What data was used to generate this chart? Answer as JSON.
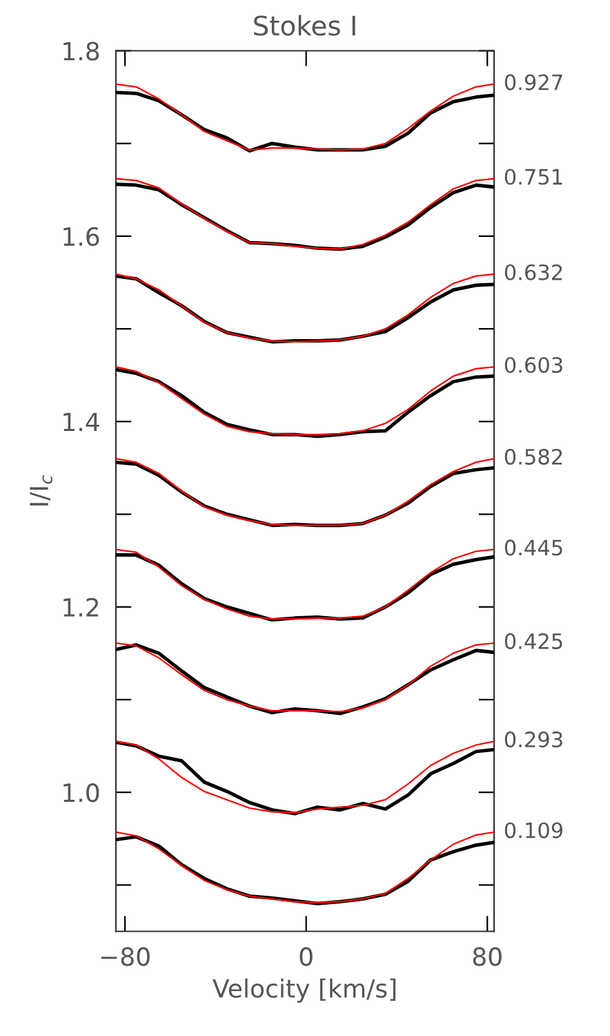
{
  "chart_data": {
    "type": "line",
    "title": "Stokes I",
    "xlabel": "Velocity [km/s]",
    "ylabel": "I/I$_{c}$",
    "x": [
      -84,
      -75,
      -65,
      -55,
      -45,
      -35,
      -25,
      -15,
      -5,
      5,
      15,
      25,
      35,
      45,
      55,
      65,
      75,
      83
    ],
    "xlim": [
      -84,
      83
    ],
    "xticks": [
      {
        "value": -80,
        "label": "−80"
      },
      0,
      80
    ],
    "ylim": [
      0.85,
      1.8
    ],
    "yticks": [
      {
        "value": 0.9,
        "label": null
      },
      {
        "value": 1.0,
        "label": "1.0"
      },
      {
        "value": 1.1,
        "label": null
      },
      1.2,
      {
        "value": 1.3,
        "label": null
      },
      1.4,
      {
        "value": 1.5,
        "label": null
      },
      1.6,
      {
        "value": 1.7,
        "label": null
      },
      1.8
    ],
    "grid": false,
    "legend": "right",
    "marker": "none",
    "line_style": "solid",
    "series": [
      {
        "name": "0.927",
        "color": "#000000",
        "values": [
          1.755,
          1.754,
          1.746,
          1.731,
          1.715,
          1.706,
          1.692,
          1.7,
          1.696,
          1.693,
          1.693,
          1.693,
          1.697,
          1.711,
          1.733,
          1.745,
          1.75,
          1.752
        ]
      },
      {
        "color": "#ff0000",
        "values": [
          1.764,
          1.761,
          1.748,
          1.731,
          1.713,
          1.703,
          1.693,
          1.695,
          1.695,
          1.694,
          1.693,
          1.694,
          1.7,
          1.716,
          1.735,
          1.751,
          1.761,
          1.764
        ]
      },
      {
        "name": "0.751",
        "color": "#000000",
        "values": [
          1.656,
          1.655,
          1.65,
          1.634,
          1.62,
          1.606,
          1.593,
          1.592,
          1.59,
          1.587,
          1.586,
          1.589,
          1.599,
          1.612,
          1.631,
          1.647,
          1.655,
          1.653
        ]
      },
      {
        "color": "#ff0000",
        "values": [
          1.662,
          1.66,
          1.652,
          1.635,
          1.619,
          1.605,
          1.593,
          1.592,
          1.589,
          1.587,
          1.586,
          1.591,
          1.601,
          1.615,
          1.634,
          1.651,
          1.66,
          1.662
        ]
      },
      {
        "name": "0.632",
        "color": "#000000",
        "values": [
          1.557,
          1.554,
          1.539,
          1.525,
          1.508,
          1.496,
          1.491,
          1.486,
          1.487,
          1.487,
          1.488,
          1.492,
          1.497,
          1.512,
          1.529,
          1.542,
          1.547,
          1.548
        ]
      },
      {
        "color": "#ff0000",
        "values": [
          1.559,
          1.554,
          1.542,
          1.525,
          1.507,
          1.496,
          1.49,
          1.487,
          1.486,
          1.487,
          1.488,
          1.492,
          1.5,
          1.515,
          1.534,
          1.549,
          1.557,
          1.559
        ]
      },
      {
        "name": "0.603",
        "color": "#000000",
        "values": [
          1.456,
          1.452,
          1.443,
          1.428,
          1.41,
          1.397,
          1.391,
          1.386,
          1.386,
          1.384,
          1.386,
          1.389,
          1.39,
          1.41,
          1.428,
          1.443,
          1.448,
          1.449
        ]
      },
      {
        "color": "#ff0000",
        "values": [
          1.459,
          1.454,
          1.442,
          1.425,
          1.408,
          1.395,
          1.389,
          1.387,
          1.386,
          1.386,
          1.387,
          1.39,
          1.398,
          1.413,
          1.433,
          1.449,
          1.457,
          1.459
        ]
      },
      {
        "name": "0.582",
        "color": "#000000",
        "values": [
          1.356,
          1.354,
          1.342,
          1.324,
          1.309,
          1.3,
          1.294,
          1.288,
          1.289,
          1.288,
          1.288,
          1.29,
          1.299,
          1.312,
          1.33,
          1.344,
          1.348,
          1.35
        ]
      },
      {
        "color": "#ff0000",
        "values": [
          1.36,
          1.356,
          1.344,
          1.325,
          1.308,
          1.299,
          1.293,
          1.289,
          1.288,
          1.288,
          1.288,
          1.29,
          1.299,
          1.314,
          1.332,
          1.346,
          1.356,
          1.36
        ]
      },
      {
        "name": "0.445",
        "color": "#000000",
        "values": [
          1.256,
          1.256,
          1.245,
          1.225,
          1.209,
          1.2,
          1.193,
          1.186,
          1.188,
          1.189,
          1.187,
          1.188,
          1.2,
          1.215,
          1.235,
          1.246,
          1.251,
          1.254
        ]
      },
      {
        "color": "#ff0000",
        "values": [
          1.262,
          1.259,
          1.243,
          1.223,
          1.208,
          1.198,
          1.19,
          1.187,
          1.187,
          1.188,
          1.188,
          1.19,
          1.2,
          1.218,
          1.237,
          1.252,
          1.26,
          1.262
        ]
      },
      {
        "name": "0.425",
        "color": "#000000",
        "values": [
          1.154,
          1.159,
          1.15,
          1.131,
          1.113,
          1.103,
          1.093,
          1.086,
          1.09,
          1.088,
          1.085,
          1.092,
          1.101,
          1.116,
          1.132,
          1.143,
          1.153,
          1.151
        ]
      },
      {
        "color": "#ff0000",
        "values": [
          1.161,
          1.158,
          1.145,
          1.127,
          1.11,
          1.1,
          1.093,
          1.088,
          1.088,
          1.088,
          1.087,
          1.091,
          1.1,
          1.116,
          1.136,
          1.15,
          1.159,
          1.161
        ]
      },
      {
        "name": "0.293",
        "color": "#000000",
        "values": [
          1.054,
          1.05,
          1.039,
          1.034,
          1.011,
          1.001,
          0.989,
          0.981,
          0.977,
          0.984,
          0.981,
          0.988,
          0.982,
          0.997,
          1.02,
          1.031,
          1.044,
          1.046
        ]
      },
      {
        "color": "#ff0000",
        "values": [
          1.055,
          1.051,
          1.036,
          1.016,
          1.001,
          0.992,
          0.983,
          0.979,
          0.978,
          0.982,
          0.984,
          0.986,
          0.992,
          1.009,
          1.029,
          1.042,
          1.051,
          1.055
        ]
      },
      {
        "name": "0.109",
        "color": "#000000",
        "values": [
          0.949,
          0.952,
          0.942,
          0.922,
          0.907,
          0.896,
          0.888,
          0.886,
          0.883,
          0.88,
          0.882,
          0.885,
          0.89,
          0.904,
          0.927,
          0.936,
          0.943,
          0.946
        ]
      },
      {
        "color": "#ff0000",
        "values": [
          0.957,
          0.953,
          0.939,
          0.921,
          0.905,
          0.895,
          0.888,
          0.885,
          0.882,
          0.881,
          0.882,
          0.885,
          0.891,
          0.907,
          0.927,
          0.944,
          0.954,
          0.957
        ]
      }
    ]
  }
}
